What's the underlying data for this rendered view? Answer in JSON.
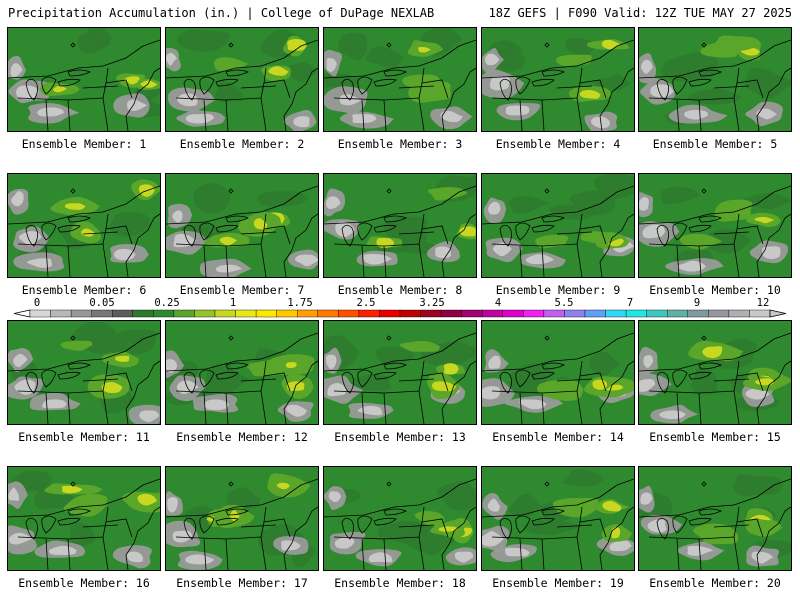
{
  "header": {
    "left": "Precipitation Accumulation (in.) | College of DuPage NEXLAB",
    "right": "18Z GEFS | F090 Valid: 12Z TUE MAY 27 2025"
  },
  "panels": [
    {
      "label": "Ensemble Member: 1",
      "member": 1,
      "field_seed": 11
    },
    {
      "label": "Ensemble Member: 2",
      "member": 2,
      "field_seed": 23
    },
    {
      "label": "Ensemble Member: 3",
      "member": 3,
      "field_seed": 37
    },
    {
      "label": "Ensemble Member: 4",
      "member": 4,
      "field_seed": 41
    },
    {
      "label": "Ensemble Member: 5",
      "member": 5,
      "field_seed": 53
    },
    {
      "label": "Ensemble Member: 6",
      "member": 6,
      "field_seed": 67
    },
    {
      "label": "Ensemble Member: 7",
      "member": 7,
      "field_seed": 71
    },
    {
      "label": "Ensemble Member: 8",
      "member": 8,
      "field_seed": 83
    },
    {
      "label": "Ensemble Member: 9",
      "member": 9,
      "field_seed": 97
    },
    {
      "label": "Ensemble Member: 10",
      "member": 10,
      "field_seed": 101
    },
    {
      "label": "Ensemble Member: 11",
      "member": 11,
      "field_seed": 113
    },
    {
      "label": "Ensemble Member: 12",
      "member": 12,
      "field_seed": 127
    },
    {
      "label": "Ensemble Member: 13",
      "member": 13,
      "field_seed": 131
    },
    {
      "label": "Ensemble Member: 14",
      "member": 14,
      "field_seed": 149
    },
    {
      "label": "Ensemble Member: 15",
      "member": 15,
      "field_seed": 151
    },
    {
      "label": "Ensemble Member: 16",
      "member": 16,
      "field_seed": 163
    },
    {
      "label": "Ensemble Member: 17",
      "member": 17,
      "field_seed": 173
    },
    {
      "label": "Ensemble Member: 18",
      "member": 18,
      "field_seed": 181
    },
    {
      "label": "Ensemble Member: 19",
      "member": 19,
      "field_seed": 191
    },
    {
      "label": "Ensemble Member: 20",
      "member": 20,
      "field_seed": 199
    }
  ],
  "colorbar": {
    "tick_labels": [
      "0",
      "0.05",
      "0.25",
      "1",
      "1.75",
      "2.5",
      "3.25",
      "4",
      "5.5",
      "7",
      "9",
      "12"
    ],
    "colors": [
      "#d8d8d8",
      "#b8b8b8",
      "#989898",
      "#787878",
      "#5c5c5c",
      "#2e7a2e",
      "#2f8a2f",
      "#5aa62a",
      "#94c42a",
      "#c8d820",
      "#e8e818",
      "#fce800",
      "#ffc800",
      "#ffa000",
      "#ff7800",
      "#ff5000",
      "#ff2000",
      "#e80000",
      "#c00000",
      "#a00020",
      "#900040",
      "#a00070",
      "#c000a0",
      "#e000c8",
      "#f020f0",
      "#c060f0",
      "#9080f0",
      "#60a0f8",
      "#30d8f8",
      "#20e8e0",
      "#40c8c0",
      "#60b0a8",
      "#8098a0",
      "#9898a0",
      "#b0b0b0",
      "#c8c8c8"
    ]
  },
  "colors": {
    "background": "#ffffff",
    "map_green": "#2f8a2f",
    "map_dark_green": "#2e7a2e",
    "light_green": "#5aa62a",
    "yellow_green": "#c8d820",
    "gray_light": "#c8c8c8",
    "gray_mid": "#9a9a9a",
    "line": "#000000"
  }
}
